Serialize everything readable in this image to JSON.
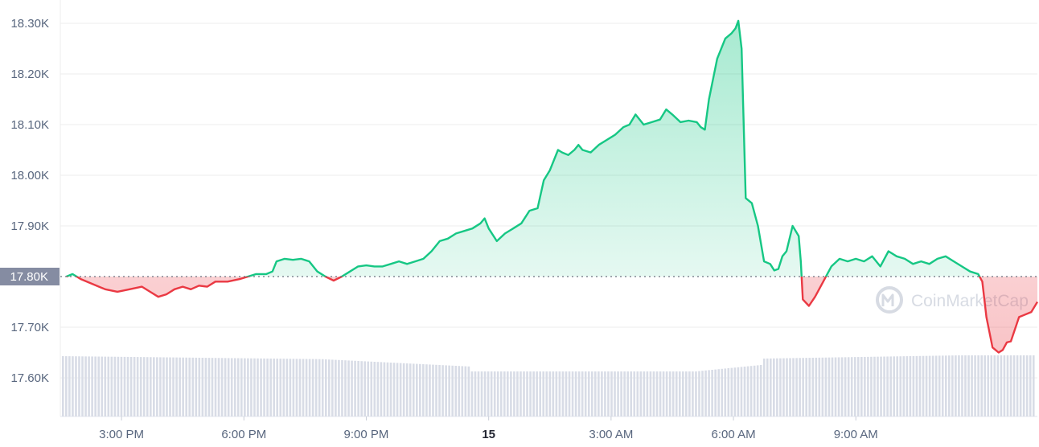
{
  "chart_data": {
    "type": "line",
    "title": "",
    "xlabel": "",
    "ylabel": "",
    "reference_price": 17.8,
    "reference_label": "17.80K",
    "ylim": [
      17.53,
      18.32
    ],
    "yticks": [
      {
        "value": 18.3,
        "label": "18.30K"
      },
      {
        "value": 18.2,
        "label": "18.20K"
      },
      {
        "value": 18.1,
        "label": "18.10K"
      },
      {
        "value": 18.0,
        "label": "18.00K"
      },
      {
        "value": 17.9,
        "label": "17.90K"
      },
      {
        "value": 17.7,
        "label": "17.70K"
      },
      {
        "value": 17.6,
        "label": "17.60K"
      }
    ],
    "xlim": [
      13.65,
      14.02
    ],
    "xticks": [
      {
        "value": 15.0,
        "label": "3:00 PM",
        "bold": false
      },
      {
        "value": 18.0,
        "label": "6:00 PM",
        "bold": false
      },
      {
        "value": 21.0,
        "label": "9:00 PM",
        "bold": false
      },
      {
        "value": 24.0,
        "label": "15",
        "bold": true
      },
      {
        "value": 27.0,
        "label": "3:00 AM",
        "bold": false
      },
      {
        "value": 30.0,
        "label": "6:00 AM",
        "bold": false
      },
      {
        "value": 33.0,
        "label": "9:00 AM",
        "bold": false
      }
    ],
    "x_domain": [
      13.65,
      37.0
    ],
    "series": [
      {
        "name": "",
        "points": [
          [
            13.65,
            17.8
          ],
          [
            13.8,
            17.805
          ],
          [
            14.0,
            17.795
          ],
          [
            14.3,
            17.785
          ],
          [
            14.6,
            17.775
          ],
          [
            14.9,
            17.77
          ],
          [
            15.2,
            17.775
          ],
          [
            15.5,
            17.78
          ],
          [
            15.7,
            17.77
          ],
          [
            15.9,
            17.76
          ],
          [
            16.1,
            17.765
          ],
          [
            16.3,
            17.775
          ],
          [
            16.5,
            17.78
          ],
          [
            16.7,
            17.775
          ],
          [
            16.9,
            17.782
          ],
          [
            17.1,
            17.78
          ],
          [
            17.3,
            17.79
          ],
          [
            17.6,
            17.79
          ],
          [
            17.9,
            17.795
          ],
          [
            18.1,
            17.8
          ],
          [
            18.3,
            17.805
          ],
          [
            18.55,
            17.805
          ],
          [
            18.7,
            17.81
          ],
          [
            18.8,
            17.83
          ],
          [
            19.0,
            17.835
          ],
          [
            19.2,
            17.833
          ],
          [
            19.4,
            17.835
          ],
          [
            19.6,
            17.83
          ],
          [
            19.8,
            17.81
          ],
          [
            20.0,
            17.8
          ],
          [
            20.2,
            17.792
          ],
          [
            20.4,
            17.8
          ],
          [
            20.6,
            17.81
          ],
          [
            20.8,
            17.82
          ],
          [
            21.0,
            17.822
          ],
          [
            21.2,
            17.82
          ],
          [
            21.4,
            17.82
          ],
          [
            21.6,
            17.825
          ],
          [
            21.8,
            17.83
          ],
          [
            22.0,
            17.825
          ],
          [
            22.2,
            17.83
          ],
          [
            22.4,
            17.835
          ],
          [
            22.6,
            17.85
          ],
          [
            22.8,
            17.87
          ],
          [
            23.0,
            17.875
          ],
          [
            23.2,
            17.885
          ],
          [
            23.4,
            17.89
          ],
          [
            23.6,
            17.895
          ],
          [
            23.8,
            17.905
          ],
          [
            23.9,
            17.915
          ],
          [
            24.0,
            17.895
          ],
          [
            24.2,
            17.87
          ],
          [
            24.4,
            17.885
          ],
          [
            24.6,
            17.895
          ],
          [
            24.8,
            17.905
          ],
          [
            25.0,
            17.93
          ],
          [
            25.2,
            17.935
          ],
          [
            25.35,
            17.99
          ],
          [
            25.5,
            18.01
          ],
          [
            25.7,
            18.05
          ],
          [
            25.8,
            18.045
          ],
          [
            25.95,
            18.04
          ],
          [
            26.1,
            18.05
          ],
          [
            26.2,
            18.06
          ],
          [
            26.3,
            18.05
          ],
          [
            26.5,
            18.045
          ],
          [
            26.7,
            18.06
          ],
          [
            26.9,
            18.07
          ],
          [
            27.1,
            18.08
          ],
          [
            27.3,
            18.095
          ],
          [
            27.45,
            18.1
          ],
          [
            27.6,
            18.12
          ],
          [
            27.8,
            18.1
          ],
          [
            28.0,
            18.105
          ],
          [
            28.2,
            18.11
          ],
          [
            28.35,
            18.13
          ],
          [
            28.5,
            18.12
          ],
          [
            28.7,
            18.105
          ],
          [
            28.9,
            18.108
          ],
          [
            29.1,
            18.105
          ],
          [
            29.2,
            18.095
          ],
          [
            29.3,
            18.09
          ],
          [
            29.4,
            18.15
          ],
          [
            29.6,
            18.23
          ],
          [
            29.8,
            18.27
          ],
          [
            29.95,
            18.28
          ],
          [
            30.05,
            18.29
          ],
          [
            30.12,
            18.305
          ],
          [
            30.2,
            18.25
          ],
          [
            30.3,
            17.955
          ],
          [
            30.45,
            17.945
          ],
          [
            30.6,
            17.9
          ],
          [
            30.75,
            17.83
          ],
          [
            30.9,
            17.825
          ],
          [
            31.0,
            17.812
          ],
          [
            31.1,
            17.815
          ],
          [
            31.2,
            17.84
          ],
          [
            31.3,
            17.85
          ],
          [
            31.45,
            17.9
          ],
          [
            31.6,
            17.88
          ],
          [
            31.65,
            17.83
          ],
          [
            31.7,
            17.755
          ],
          [
            31.85,
            17.742
          ],
          [
            32.0,
            17.76
          ],
          [
            32.2,
            17.79
          ],
          [
            32.4,
            17.82
          ],
          [
            32.6,
            17.835
          ],
          [
            32.8,
            17.83
          ],
          [
            33.0,
            17.835
          ],
          [
            33.2,
            17.83
          ],
          [
            33.4,
            17.84
          ],
          [
            33.6,
            17.82
          ],
          [
            33.8,
            17.85
          ],
          [
            34.0,
            17.84
          ],
          [
            34.2,
            17.835
          ],
          [
            34.4,
            17.825
          ],
          [
            34.6,
            17.83
          ],
          [
            34.8,
            17.825
          ],
          [
            35.0,
            17.835
          ],
          [
            35.2,
            17.84
          ],
          [
            35.4,
            17.83
          ],
          [
            35.6,
            17.82
          ],
          [
            35.8,
            17.81
          ],
          [
            36.0,
            17.805
          ],
          [
            36.1,
            17.79
          ],
          [
            36.2,
            17.72
          ],
          [
            36.35,
            17.66
          ],
          [
            36.5,
            17.65
          ],
          [
            36.6,
            17.655
          ],
          [
            36.7,
            17.67
          ],
          [
            36.8,
            17.672
          ],
          [
            37.0,
            17.72
          ],
          [
            37.3,
            17.73
          ],
          [
            37.45,
            17.75
          ]
        ]
      }
    ],
    "volume_bars": true,
    "colors": {
      "up": "#16c784",
      "down": "#ea3943",
      "grid": "#ececec",
      "axis_text": "#58667e",
      "reference_label_bg": "#858ca2",
      "volume": "#d8dce6",
      "watermark": "#d7dbe3"
    },
    "watermark": "CoinMarketCap"
  }
}
